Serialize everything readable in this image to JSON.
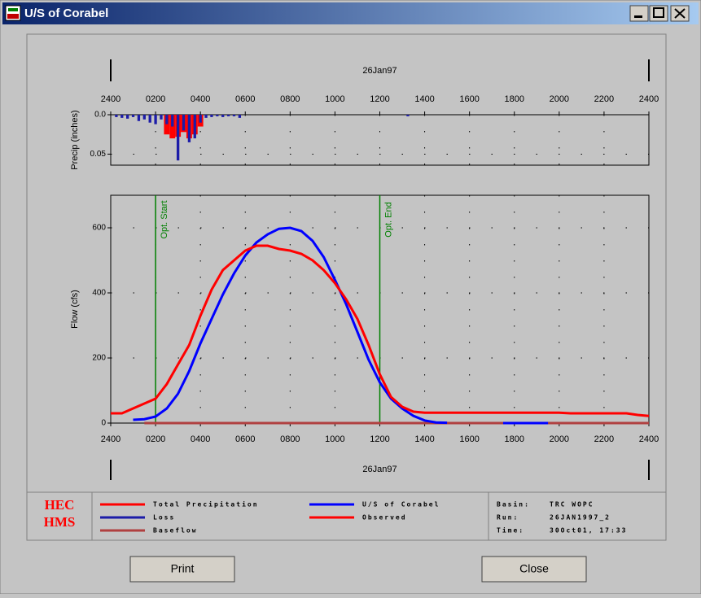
{
  "window": {
    "title": "U/S of Corabel"
  },
  "chart_data": [
    {
      "type": "bar",
      "ylabel": "Precip (inches)",
      "date": "26Jan97",
      "inverted": true,
      "grid": true,
      "xlim": [
        0,
        24
      ],
      "xticks": [
        {
          "value": 0,
          "label": "2400"
        },
        {
          "value": 2,
          "label": "0200"
        },
        {
          "value": 4,
          "label": "0400"
        },
        {
          "value": 6,
          "label": "0600"
        },
        {
          "value": 8,
          "label": "0800"
        },
        {
          "value": 10,
          "label": "1000"
        },
        {
          "value": 12,
          "label": "1200"
        },
        {
          "value": 14,
          "label": "1400"
        },
        {
          "value": 16,
          "label": "1600"
        },
        {
          "value": 18,
          "label": "1800"
        },
        {
          "value": 20,
          "label": "2000"
        },
        {
          "value": 22,
          "label": "2200"
        },
        {
          "value": 24,
          "label": "2400"
        }
      ],
      "ylim": [
        0,
        0.064
      ],
      "yticks": [
        {
          "value": 0,
          "label": "0.0"
        },
        0.05
      ],
      "series": [
        {
          "name": "Total Precipitation",
          "color": "#ff0000",
          "x": [
            2.5,
            2.75,
            3,
            3.25,
            3.5,
            3.75,
            4
          ],
          "values": [
            0.025,
            0.03,
            0.028,
            0.022,
            0.03,
            0.025,
            0.015
          ]
        },
        {
          "name": "Loss",
          "color": "#1c1ca8",
          "x": [
            0.25,
            0.5,
            0.75,
            1,
            1.25,
            1.5,
            1.75,
            2,
            2.25,
            2.5,
            2.75,
            3,
            3.25,
            3.5,
            3.75,
            4,
            4.25,
            4.5,
            4.75,
            5,
            5.25,
            5.5,
            5.75,
            13.25
          ],
          "values": [
            0.003,
            0.004,
            0.005,
            0.003,
            0.008,
            0.006,
            0.01,
            0.012,
            0.006,
            0.012,
            0.015,
            0.058,
            0.02,
            0.035,
            0.03,
            0.01,
            0.004,
            0.003,
            0.002,
            0.003,
            0.002,
            0.002,
            0.004,
            0.002
          ]
        }
      ]
    },
    {
      "type": "line",
      "ylabel": "Flow (cfs)",
      "date": "26Jan97",
      "grid": true,
      "xlim": [
        0,
        24
      ],
      "xticks": [
        {
          "value": 0,
          "label": "2400"
        },
        {
          "value": 2,
          "label": "0200"
        },
        {
          "value": 4,
          "label": "0400"
        },
        {
          "value": 6,
          "label": "0600"
        },
        {
          "value": 8,
          "label": "0800"
        },
        {
          "value": 10,
          "label": "1000"
        },
        {
          "value": 12,
          "label": "1200"
        },
        {
          "value": 14,
          "label": "1400"
        },
        {
          "value": 16,
          "label": "1600"
        },
        {
          "value": 18,
          "label": "1800"
        },
        {
          "value": 20,
          "label": "2000"
        },
        {
          "value": 22,
          "label": "2200"
        },
        {
          "value": 24,
          "label": "2400"
        }
      ],
      "ylim": [
        0,
        700
      ],
      "yticks": [
        0,
        200,
        400,
        600
      ],
      "vlines": [
        {
          "x": 2,
          "label": "Opt. Start",
          "color": "#008000"
        },
        {
          "x": 12,
          "label": "Opt. End",
          "color": "#008000"
        }
      ],
      "x": [
        0,
        0.5,
        1,
        1.5,
        2,
        2.5,
        3,
        3.5,
        4,
        4.5,
        5,
        5.5,
        6,
        6.5,
        7,
        7.5,
        8,
        8.5,
        9,
        9.5,
        10,
        10.5,
        11,
        11.5,
        12,
        12.5,
        13,
        13.5,
        14,
        14.5,
        15,
        15.5,
        16,
        16.5,
        17,
        17.5,
        18,
        18.5,
        19,
        19.5,
        20,
        20.5,
        21,
        21.5,
        22,
        22.5,
        23,
        23.5,
        24
      ],
      "series": [
        {
          "name": "Baseflow",
          "color": "#b04040",
          "values": [
            null,
            null,
            null,
            0,
            0,
            0,
            0,
            0,
            0,
            0,
            0,
            0,
            0,
            0,
            0,
            0,
            0,
            0,
            0,
            0,
            0,
            0,
            0,
            0,
            0,
            0,
            0,
            0,
            0,
            0,
            0,
            0,
            0,
            0,
            0,
            0,
            0,
            0,
            0,
            0,
            0,
            0,
            0,
            0,
            0,
            0,
            0,
            0,
            0
          ]
        },
        {
          "name": "U/S of Corabel",
          "color": "#0000ff",
          "values": [
            null,
            null,
            10,
            12,
            20,
            45,
            90,
            160,
            245,
            320,
            395,
            460,
            515,
            555,
            580,
            597,
            600,
            590,
            560,
            510,
            440,
            365,
            280,
            195,
            125,
            75,
            45,
            22,
            8,
            2,
            1,
            null,
            null,
            null,
            null,
            0,
            0,
            0,
            0,
            0,
            null,
            null,
            null,
            null,
            null,
            null,
            null,
            null,
            null
          ]
        },
        {
          "name": "Observed",
          "color": "#ff0000",
          "values": [
            30,
            30,
            45,
            60,
            75,
            120,
            180,
            240,
            330,
            410,
            470,
            500,
            530,
            545,
            545,
            535,
            530,
            520,
            500,
            470,
            430,
            380,
            320,
            240,
            150,
            80,
            50,
            35,
            32,
            32,
            32,
            32,
            32,
            32,
            32,
            32,
            32,
            32,
            32,
            32,
            32,
            30,
            30,
            30,
            30,
            30,
            30,
            25,
            22
          ]
        }
      ]
    }
  ],
  "logo": [
    "HEC",
    "HMS"
  ],
  "info": [
    {
      "label": "Basin:",
      "value": "TRC WOPC"
    },
    {
      "label": "Run:",
      "value": "26JAN1997_2"
    },
    {
      "label": "Time:",
      "value": "30Oct01, 17:33"
    }
  ],
  "buttons": [
    "Print",
    "Close"
  ]
}
